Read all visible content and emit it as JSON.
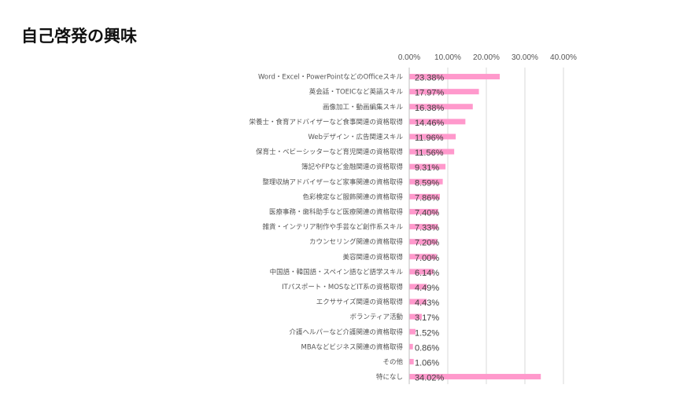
{
  "chart_data": {
    "type": "bar",
    "orientation": "horizontal",
    "title": "自己啓発の興味",
    "x_tick_labels": [
      "0.00%",
      "10.00%",
      "20.00%",
      "30.00%",
      "40.00%"
    ],
    "xlim": [
      0,
      40
    ],
    "grid": true,
    "bar_color": "#ff99cc",
    "categories": [
      "Word・Excel・PowerPointなどのOfficeスキル",
      "英会話・TOEICなど英語スキル",
      "画像加工・動画編集スキル",
      "栄養士・食育アドバイザーなど食事関連の資格取得",
      "Webデザイン・広告関連スキル",
      "保育士・ベビーシッターなど育児関連の資格取得",
      "簿記やFPなど金融関連の資格取得",
      "整理収納アドバイザーなど家事関連の資格取得",
      "色彩検定など服飾関連の資格取得",
      "医療事務・歯科助手など医療関連の資格取得",
      "雑貨・インテリア制作や手芸など創作系スキル",
      "カウンセリング関連の資格取得",
      "美容関連の資格取得",
      "中国語・韓国語・スペイン語など語学スキル",
      "ITパスポート・MOSなどIT系の資格取得",
      "エクササイズ関連の資格取得",
      "ボランティア活動",
      "介護ヘルパーなど介護関連の資格取得",
      "MBAなどビジネス関連の資格取得",
      "その他",
      "特になし"
    ],
    "values": [
      23.38,
      17.97,
      16.38,
      14.46,
      11.96,
      11.56,
      9.31,
      8.59,
      7.86,
      7.4,
      7.33,
      7.2,
      7.0,
      6.14,
      4.49,
      4.43,
      3.17,
      1.52,
      0.86,
      1.06,
      34.02
    ],
    "data_labels": [
      "23.38%",
      "17.97%",
      "16.38%",
      "14.46%",
      "11.96%",
      "11.56%",
      "9.31%",
      "8.59%",
      "7.86%",
      "7.40%",
      "7.33%",
      "7.20%",
      "7.00%",
      "6.14%",
      "4.49%",
      "4.43%",
      "3.17%",
      "1.52%",
      "0.86%",
      "1.06%",
      "34.02%"
    ]
  }
}
